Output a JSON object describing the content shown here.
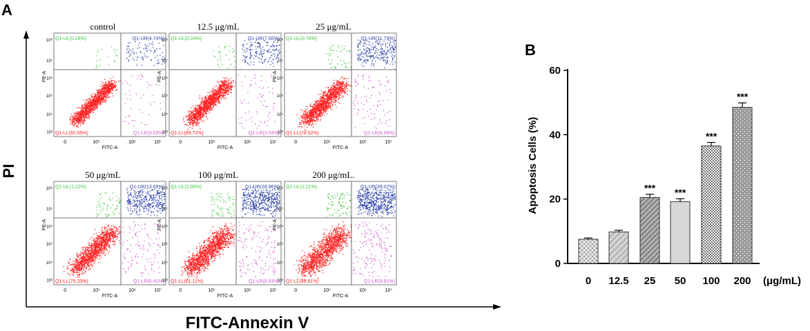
{
  "panel_a": {
    "letter": "A",
    "y_axis_label": "PI",
    "x_axis_label": "FITC-Annexin V",
    "plot_y_label": "PE-A",
    "plot_x_label": "FITC-A",
    "x_ticks": [
      "0",
      "10⁵",
      "10⁶",
      "10⁷"
    ],
    "y_ticks": [
      "10⁸",
      "10⁷",
      "10⁶",
      "10⁵",
      "10⁴",
      "10³"
    ],
    "gate_labels": {
      "ul": "Q1-UL",
      "ur": "Q1-UR",
      "ll": "Q1-LL",
      "lr": "Q1-LR"
    },
    "colors": {
      "ll": "#ff2020",
      "ul": "#3cc83c",
      "ur": "#2a3fa8",
      "lr": "#d056d0"
    }
  },
  "chart_data": [
    {
      "type": "scatter",
      "subtype": "flow-cytometry-quadrant-grid",
      "plots": [
        {
          "title": "control",
          "ul": "(0.18%)",
          "ur": "(4.74%)",
          "ll": "(92.05%)",
          "lr": "(3.03%)"
        },
        {
          "title": "12.5 μg/mL",
          "ul": "(0.24%)",
          "ur": "(7.00%)",
          "ll": "(89.72%)",
          "lr": "(3.04%)"
        },
        {
          "title": "25 μg/mL",
          "ul": "(0.76%)",
          "ur": "(11.73%)",
          "ll": "(78.52%)",
          "lr": "(8.99%)"
        },
        {
          "title": "50 μg/mL",
          "ul": "(1.22%)",
          "ur": "(13.05%)",
          "ll": "(79.33%)",
          "lr": "(6.41%)"
        },
        {
          "title": "100 μg/mL",
          "ul": "(2.00%)",
          "ur": "(28.96%)",
          "ll": "(61.11%)",
          "lr": "(8.93%)"
        },
        {
          "title": "200 μg/mL.",
          "ul": "(1.21%)",
          "ur": "(39.07%)",
          "ll": "(49.81%)",
          "lr": "(9.91%)"
        }
      ]
    },
    {
      "type": "bar",
      "panel_letter": "B",
      "categories": [
        "0",
        "12.5",
        "25",
        "50",
        "100",
        "200"
      ],
      "values": [
        7.5,
        9.8,
        20.5,
        19.2,
        36.5,
        48.5
      ],
      "errors": [
        0.4,
        0.5,
        1.0,
        0.9,
        1.1,
        1.4
      ],
      "significance": [
        "",
        "",
        "***",
        "***",
        "***",
        "***"
      ],
      "ylabel": "Apoptosis Cells (%)",
      "xunit": "(μg/mL)",
      "ylim": [
        0,
        60
      ],
      "yticks": [
        "0",
        "20",
        "40",
        "60"
      ],
      "bar_fill": "#a8a8a8"
    }
  ]
}
